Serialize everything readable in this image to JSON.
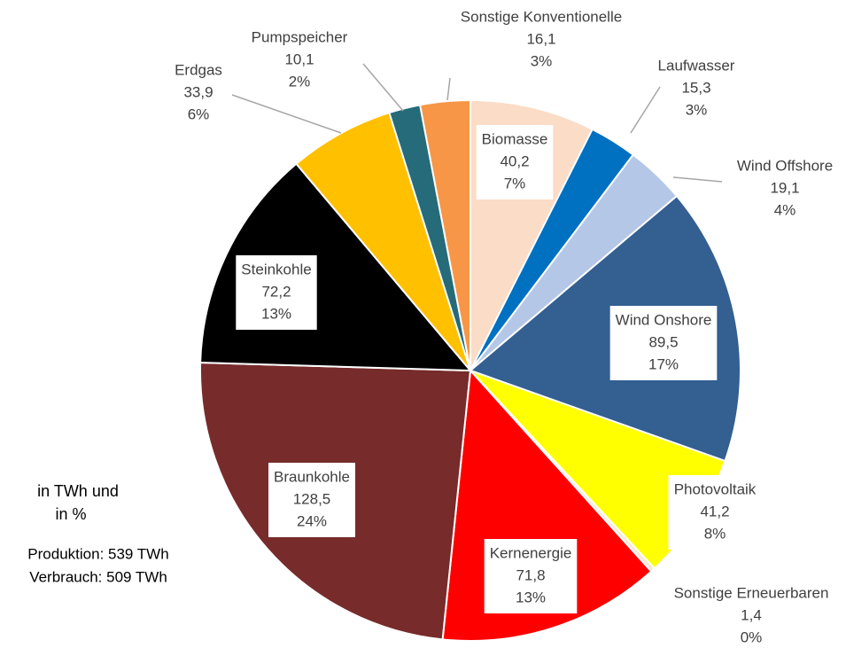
{
  "chart_data": {
    "type": "pie",
    "categories": [
      "Biomasse",
      "Laufwasser",
      "Wind Offshore",
      "Wind Onshore",
      "Photovoltaik",
      "Sonstige Erneuerbaren",
      "Kernenergie",
      "Braunkohle",
      "Steinkohle",
      "Erdgas",
      "Pumpspeicher",
      "Sonstige Konventionelle"
    ],
    "values": [
      40.2,
      15.3,
      19.1,
      89.5,
      41.2,
      1.4,
      71.8,
      128.5,
      72.2,
      33.9,
      10.1,
      16.1
    ],
    "value_labels": [
      "40,2",
      "15,3",
      "19,1",
      "89,5",
      "41,2",
      "1,4",
      "71,8",
      "128,5",
      "72,2",
      "33,9",
      "10,1",
      "16,1"
    ],
    "percentages": [
      7,
      3,
      4,
      17,
      8,
      0,
      13,
      24,
      13,
      6,
      2,
      3
    ],
    "percentage_labels": [
      "7%",
      "3%",
      "4%",
      "17%",
      "8%",
      "0%",
      "13%",
      "24%",
      "13%",
      "6%",
      "2%",
      "3%"
    ],
    "colors": [
      "#fbdcc6",
      "#0070c0",
      "#b4c7e7",
      "#335f91",
      "#ffff00",
      "#fbe5d6",
      "#ff0000",
      "#772b2b",
      "#000000",
      "#ffc000",
      "#256b7a",
      "#f79646"
    ],
    "annotations": [
      "in TWh und",
      "in %",
      "Produktion: 539 TWh",
      "Verbrauch: 509 TWh"
    ]
  }
}
